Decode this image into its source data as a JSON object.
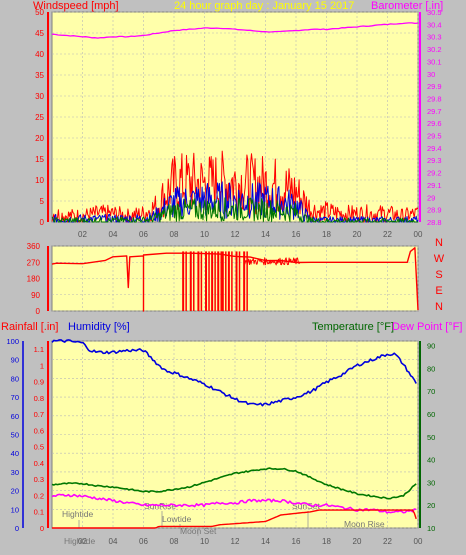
{
  "colors": {
    "background": "#c0c0c0",
    "plot_bg": "#ffffaa",
    "grid": "#b8b8b8",
    "red": "#ff0000",
    "magenta": "#ff00ff",
    "blue": "#0000dd",
    "green": "#007700",
    "yellow": "#ffff00",
    "dark_green": "#006600",
    "axis_text": "#555555"
  },
  "chart_data": [
    {
      "type": "line",
      "panel": "wind-barometer",
      "title": "24 hour graph day : January 15 2017",
      "left_label": "Windspeed [mph]",
      "right_label": "Barometer [.in]",
      "x_ticks": [
        "02",
        "04",
        "06",
        "08",
        "10",
        "12",
        "14",
        "16",
        "18",
        "20",
        "22",
        "00"
      ],
      "xlim": [
        0,
        24
      ],
      "left_ylim": [
        0,
        50
      ],
      "left_yticks": [
        "0",
        "5",
        "10",
        "15",
        "20",
        "25",
        "30",
        "35",
        "40",
        "45",
        "50"
      ],
      "right_ylim": [
        28.8,
        30.5
      ],
      "right_yticks": [
        "28.8",
        "28.9",
        "29",
        "29.1",
        "29.2",
        "29.3",
        "29.4",
        "29.5",
        "29.6",
        "29.7",
        "29.8",
        "29.9",
        "30",
        "30.1",
        "30.2",
        "30.3",
        "30.4",
        "30.5"
      ],
      "series": [
        {
          "axis": "right",
          "color": "magenta",
          "x": [
            0,
            1,
            2,
            3,
            4,
            5,
            6,
            7,
            8,
            9,
            10,
            11,
            12,
            13,
            14,
            15,
            16,
            17,
            18,
            19,
            20,
            21,
            22,
            23,
            24
          ],
          "values": [
            30.32,
            30.31,
            30.3,
            30.29,
            30.3,
            30.3,
            30.31,
            30.33,
            30.35,
            30.36,
            30.37,
            30.37,
            30.36,
            30.35,
            30.34,
            30.34,
            30.35,
            30.36,
            30.36,
            30.37,
            30.38,
            30.39,
            30.4,
            30.41,
            30.41
          ]
        },
        {
          "axis": "left",
          "color": "red",
          "style": "noisy",
          "x": [
            0,
            1,
            2,
            3,
            4,
            5,
            6,
            6.5,
            7,
            7.3,
            8,
            9,
            10,
            11,
            12,
            13,
            14,
            15,
            16,
            16.5,
            17,
            17.5,
            18,
            19,
            20,
            21,
            22,
            23,
            24
          ],
          "values": [
            2,
            1.5,
            1.5,
            2,
            2,
            1.5,
            2,
            3,
            4,
            6,
            9,
            9.5,
            9,
            9.5,
            9.5,
            9,
            9,
            8.5,
            7,
            5,
            3,
            2.5,
            2.5,
            2,
            2,
            2,
            2,
            1.5,
            2
          ]
        },
        {
          "axis": "left",
          "color": "blue",
          "style": "noisy",
          "x": [
            0,
            2,
            4,
            6,
            6.5,
            7,
            7.5,
            8,
            10,
            12,
            14,
            15,
            16,
            16.5,
            17,
            17.5,
            18,
            20,
            22,
            24
          ],
          "values": [
            0.7,
            0.7,
            0.7,
            0.8,
            1,
            2,
            3.5,
            4.5,
            5.3,
            5.2,
            5,
            4.6,
            4,
            2,
            0.5,
            0.4,
            0.4,
            0.4,
            0.4,
            0.5
          ]
        },
        {
          "axis": "left",
          "color": "green",
          "style": "noisy",
          "x": [
            0,
            2,
            4,
            6,
            6.5,
            7,
            7.5,
            8,
            10,
            12,
            14,
            15,
            16,
            16.5,
            17,
            17.5,
            18,
            20,
            22,
            24
          ],
          "values": [
            0.3,
            0.3,
            0.3,
            0.4,
            0.6,
            1.2,
            2,
            2.7,
            3,
            3,
            2.9,
            2.7,
            2.3,
            1,
            0.3,
            0.2,
            0.2,
            0.2,
            0.2,
            0.2
          ]
        }
      ]
    },
    {
      "type": "line",
      "panel": "wind-direction",
      "left_ylim": [
        0,
        360
      ],
      "left_yticks": [
        "0",
        "90",
        "180",
        "270",
        "360"
      ],
      "right_compass": [
        "N",
        "W",
        "S",
        "E",
        "N"
      ],
      "x_ticks": [],
      "series": [
        {
          "color": "red",
          "x": [
            0,
            0.3,
            2,
            3.5,
            4,
            4.9,
            5,
            5.1,
            6,
            6,
            6,
            6,
            7.5,
            8.5,
            9,
            10,
            11,
            12,
            13,
            14,
            15,
            16,
            17,
            18,
            19,
            20,
            21,
            22,
            23,
            23.3,
            23.5,
            23.8,
            24
          ],
          "values": [
            260,
            265,
            262,
            280,
            300,
            305,
            130,
            300,
            305,
            0,
            305,
            310,
            320,
            320,
            320,
            318,
            315,
            310,
            290,
            275,
            270,
            268,
            270,
            270,
            270,
            270,
            270,
            270,
            270,
            270,
            330,
            350,
            5
          ]
        },
        {
          "color": "red",
          "style": "gaps",
          "drops_at": [
            8.6,
            9.1,
            9.6,
            10.1,
            10.5,
            10.9,
            11.2,
            11.6,
            12.1,
            12.6
          ],
          "values": [
            0
          ]
        }
      ]
    },
    {
      "type": "line",
      "panel": "rain-humidity-temp",
      "left_labels": [
        "Rainfall [.in]",
        "Humidity [%]"
      ],
      "right_labels": [
        "Temperature [°F]",
        "Dew Point [°F]"
      ],
      "x_ticks": [
        "02",
        "04",
        "06",
        "08",
        "10",
        "12",
        "14",
        "16",
        "18",
        "20",
        "22",
        "00"
      ],
      "xlim": [
        0,
        24
      ],
      "humidity_yticks": [
        "0",
        "10",
        "20",
        "30",
        "40",
        "50",
        "60",
        "70",
        "80",
        "90",
        "100"
      ],
      "rain_yticks": [
        "0",
        "0.1",
        "0.2",
        "0.3",
        "0.4",
        "0.5",
        "0.6",
        "0.7",
        "0.8",
        "0.9",
        "1",
        "1.1"
      ],
      "rain_ylim": [
        0,
        1.15
      ],
      "temp_yticks": [
        "10",
        "20",
        "30",
        "40",
        "50",
        "60",
        "70",
        "80",
        "90"
      ],
      "temp_ylim": [
        10,
        92
      ],
      "series": [
        {
          "name": "Humidity [%]",
          "color": "blue",
          "axis": "humidity",
          "x": [
            0,
            1,
            2,
            2.5,
            3,
            4,
            5,
            6,
            7,
            7.5,
            8,
            9,
            10,
            11,
            12,
            13,
            14,
            15,
            16,
            17,
            18,
            19,
            20,
            21,
            22,
            22.5,
            23,
            23.5,
            24
          ],
          "values": [
            100,
            100,
            99,
            95,
            94,
            94,
            95,
            95,
            87,
            84,
            83,
            80,
            77,
            73,
            69,
            66,
            66,
            68,
            70,
            73,
            78,
            82,
            87,
            90,
            93,
            93,
            88,
            82,
            76
          ]
        },
        {
          "name": "Temperature [°F]",
          "color": "green",
          "axis": "temp",
          "x": [
            0,
            1,
            2,
            3,
            4,
            5,
            6,
            7,
            8,
            9,
            10,
            11,
            12,
            13,
            14,
            15,
            16,
            17,
            18,
            19,
            20,
            21,
            22,
            23,
            23.5,
            24
          ],
          "values": [
            29,
            29.5,
            29.5,
            28.5,
            28,
            27,
            26,
            26,
            27,
            28,
            30,
            32,
            34,
            35,
            36,
            36,
            35,
            32,
            29,
            27,
            25,
            24,
            23,
            24,
            27,
            30
          ]
        },
        {
          "name": "Dew Point [°F]",
          "color": "magenta",
          "axis": "temp",
          "x": [
            0,
            1,
            2,
            3,
            4,
            5,
            6,
            7,
            8,
            9,
            10,
            11,
            12,
            13,
            14,
            15,
            16,
            17,
            18,
            19,
            20,
            21,
            22,
            23,
            24
          ],
          "values": [
            24,
            24.5,
            24,
            23,
            22,
            21,
            20,
            20,
            20,
            20,
            20,
            21,
            21,
            22,
            22,
            22,
            21,
            20,
            20,
            19,
            18,
            18,
            17,
            17,
            18
          ]
        },
        {
          "name": "Rainfall [.in]",
          "color": "red",
          "axis": "rain",
          "x": [
            0,
            6.8,
            7,
            10.5,
            11,
            14,
            14.5,
            15,
            16,
            17,
            17.5,
            18,
            19,
            20,
            21,
            22,
            23,
            23.7,
            24
          ],
          "values": [
            0,
            0,
            0.01,
            0.01,
            0.02,
            0.04,
            0.06,
            0.08,
            0.09,
            0.1,
            0.11,
            0.11,
            0.11,
            0.11,
            0.11,
            0.11,
            0.11,
            0.11,
            0.02
          ]
        }
      ],
      "annotations": [
        {
          "label": "Hightide",
          "x": 1.5
        },
        {
          "label": "SunRise",
          "x": 7.5
        },
        {
          "label": "Lowtide",
          "x": 8.2
        },
        {
          "label": "Moon Set",
          "x": 10
        },
        {
          "label": "SunSet",
          "x": 17
        },
        {
          "label": "Moon Rise",
          "x": 20.5
        },
        {
          "label": "Hightide",
          "x": 1.5,
          "position": "bottom"
        }
      ]
    }
  ]
}
